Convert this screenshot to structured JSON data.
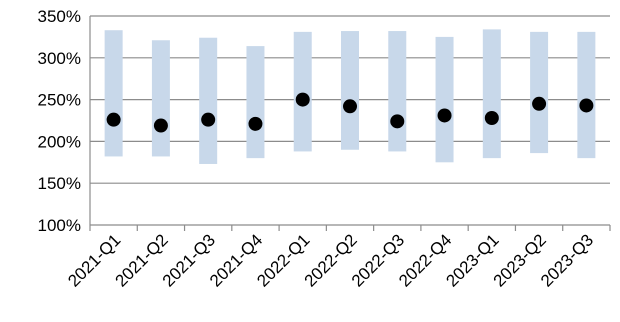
{
  "chart_data": {
    "type": "scatter",
    "title": "",
    "xlabel": "",
    "ylabel": "",
    "categories": [
      "2021-Q1",
      "2021-Q2",
      "2021-Q3",
      "2021-Q4",
      "2022-Q1",
      "2022-Q2",
      "2022-Q3",
      "2022-Q4",
      "2023-Q1",
      "2023-Q2",
      "2023-Q3"
    ],
    "series": [
      {
        "role": "range",
        "low": [
          182,
          182,
          173,
          180,
          188,
          190,
          188,
          175,
          180,
          186,
          180
        ],
        "high": [
          333,
          321,
          324,
          314,
          331,
          332,
          332,
          325,
          334,
          331,
          331
        ]
      },
      {
        "role": "point",
        "values": [
          226,
          219,
          226,
          221,
          250,
          242,
          224,
          231,
          228,
          245,
          243
        ]
      }
    ],
    "ylim": [
      100,
      350
    ],
    "yticks": [
      100,
      150,
      200,
      250,
      300,
      350
    ],
    "ytick_labels": [
      "100%",
      "150%",
      "200%",
      "250%",
      "300%",
      "350%"
    ],
    "grid": true,
    "legend": "none",
    "colors": {
      "range": "#c8d8ea",
      "point": "#000000",
      "grid": "#8c8c8c"
    }
  }
}
